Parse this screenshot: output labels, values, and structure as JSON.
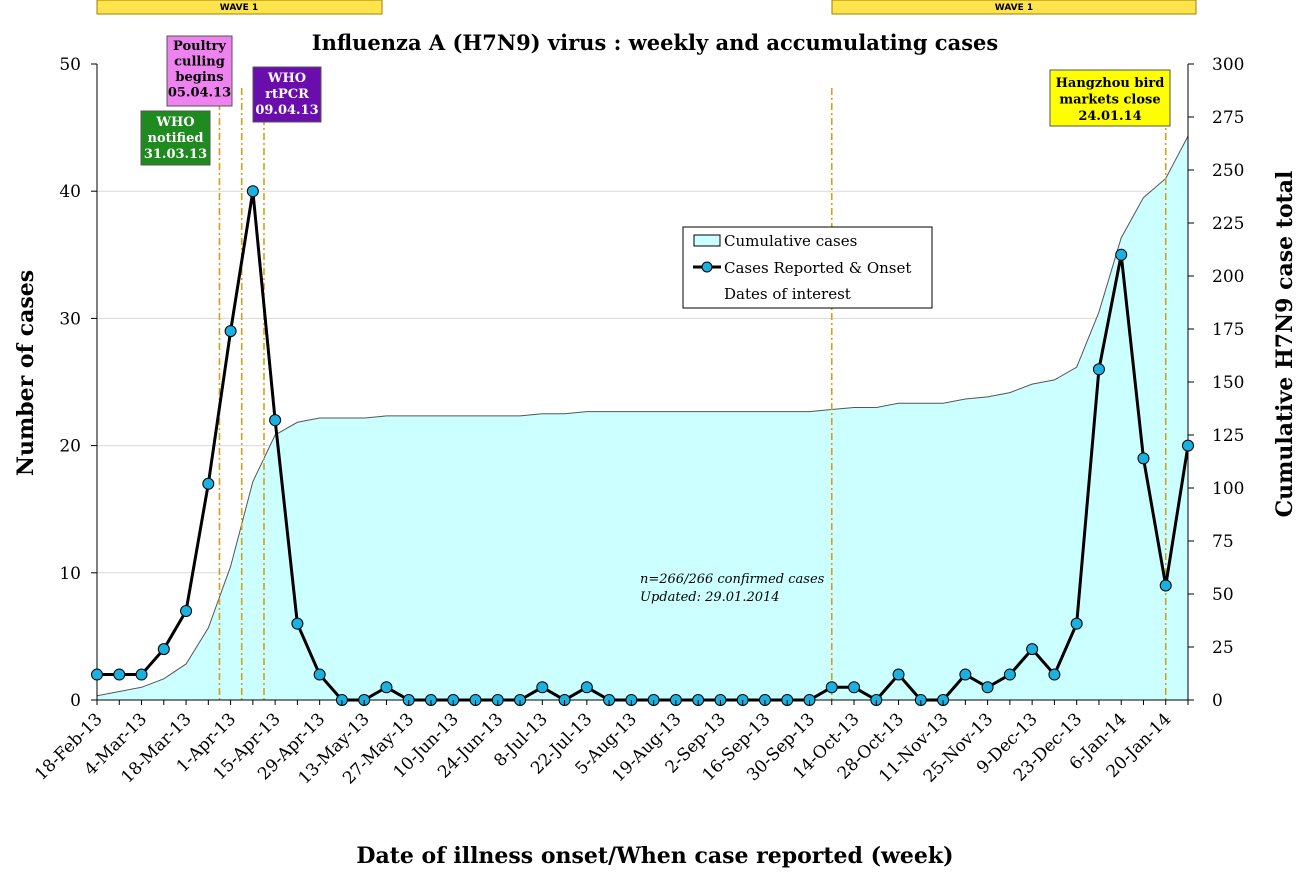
{
  "chart_data": {
    "type": "line",
    "title": "Influenza A (H7N9) virus : weekly and accumulating cases",
    "xlabel": "Date of illness onset/When case reported (week)",
    "ylabel": "Number of cases",
    "y2label": "Cumulative H7N9 case total",
    "ylim": [
      0,
      50
    ],
    "y2lim": [
      0,
      300
    ],
    "yticks": [
      "0",
      "10",
      "20",
      "30",
      "40",
      "50"
    ],
    "y2ticks": [
      "0",
      "25",
      "50",
      "75",
      "100",
      "125",
      "150",
      "175",
      "200",
      "225",
      "250",
      "275",
      "300"
    ],
    "x_tick_labels": [
      "18-Feb-13",
      "4-Mar-13",
      "18-Mar-13",
      "1-Apr-13",
      "15-Apr-13",
      "29-Apr-13",
      "13-May-13",
      "27-May-13",
      "10-Jun-13",
      "24-Jun-13",
      "8-Jul-13",
      "22-Jul-13",
      "5-Aug-13",
      "19-Aug-13",
      "2-Sep-13",
      "16-Sep-13",
      "30-Sep-13",
      "14-Oct-13",
      "28-Oct-13",
      "11-Nov-13",
      "25-Nov-13",
      "9-Dec-13",
      "23-Dec-13",
      "6-Jan-14",
      "20-Jan-14"
    ],
    "grid": "horizontal",
    "legend_position": "center-right",
    "series": [
      {
        "name": "Cumulative cases",
        "type": "area",
        "axis": "right",
        "color": "#ccffff",
        "values": [
          2,
          4,
          6,
          10,
          17,
          34,
          63,
          103,
          125,
          131,
          133,
          133,
          133,
          134,
          134,
          134,
          134,
          134,
          134,
          134,
          135,
          135,
          136,
          136,
          136,
          136,
          136,
          136,
          136,
          136,
          136,
          136,
          136,
          137,
          138,
          138,
          140,
          140,
          140,
          142,
          143,
          145,
          149,
          151,
          157,
          183,
          218,
          237,
          246,
          266
        ]
      },
      {
        "name": "Cases Reported & Onset",
        "type": "line",
        "axis": "left",
        "color": "#000000",
        "marker_color": "#1ab0e0",
        "values": [
          2,
          2,
          2,
          4,
          7,
          17,
          29,
          40,
          22,
          6,
          2,
          0,
          0,
          1,
          0,
          0,
          0,
          0,
          0,
          0,
          1,
          0,
          1,
          0,
          0,
          0,
          0,
          0,
          0,
          0,
          0,
          0,
          0,
          1,
          1,
          0,
          2,
          0,
          0,
          2,
          1,
          2,
          4,
          2,
          6,
          26,
          35,
          19,
          9,
          20
        ]
      },
      {
        "name": "Dates of interest",
        "type": "vline",
        "color": "#d4a017",
        "x_positions": [
          5.5,
          6.5,
          7.5,
          33,
          48
        ]
      }
    ],
    "annotations": [
      {
        "lines": [
          "WHO",
          "notified",
          "31.03.13"
        ],
        "bg": "#1f8a1f",
        "fg": "#ffffff"
      },
      {
        "lines": [
          "Poultry",
          "culling",
          "begins",
          "05.04.13"
        ],
        "bg": "#ee82ee",
        "fg": "#000000"
      },
      {
        "lines": [
          "WHO",
          "rtPCR",
          "09.04.13"
        ],
        "bg": "#6a0dad",
        "fg": "#ffffff"
      },
      {
        "lines": [
          "Hangzhou bird",
          "markets close",
          "24.01.14"
        ],
        "bg": "#ffff00",
        "fg": "#000000"
      }
    ],
    "wave_labels": [
      "WAVE 1",
      "WAVE 1"
    ],
    "wave_color": "#ffe44d",
    "note_lines": [
      "n=266/266 confirmed cases",
      "Updated: 29.01.2014"
    ]
  }
}
